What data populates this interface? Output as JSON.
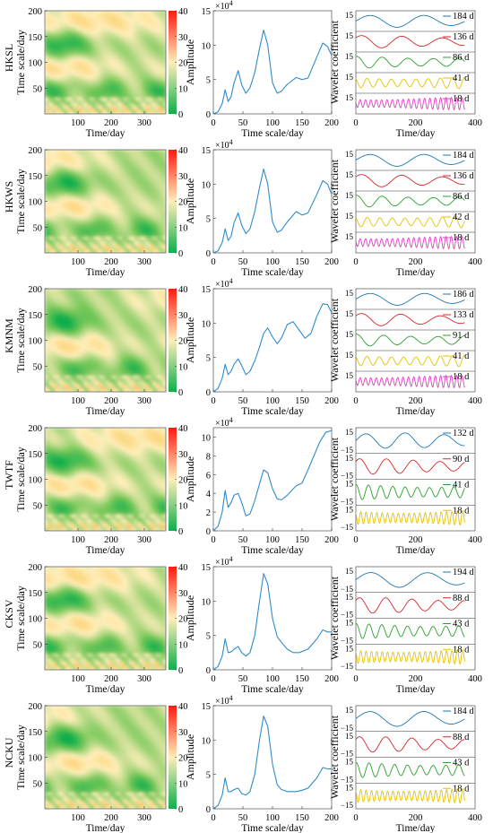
{
  "chart_data": {
    "type": "composite",
    "axis_labels": {
      "time": "Time/day",
      "scale": "Time scale/day",
      "amplitude": "Amplitude",
      "coefficient": "Wavelet coefficient",
      "exponent": "×10^4"
    },
    "colorbar": {
      "ticks": [
        0,
        10,
        20,
        30,
        40
      ],
      "colors": [
        "#0fae4c",
        "#ffeeba",
        "#ff1a10"
      ]
    },
    "wavelet_map": {
      "type": "heatmap",
      "x_ticks": [
        100,
        200,
        300
      ],
      "y_ticks": [
        50,
        100,
        150,
        200
      ],
      "xlim": [
        0,
        365
      ],
      "ylim": [
        0,
        200
      ]
    },
    "amplitude_xticks": [
      0,
      50,
      100,
      150,
      200
    ],
    "coef_xticks": [
      0,
      200,
      400
    ],
    "coef_tick": "15",
    "coef_tick_neg": "−15",
    "stations": [
      {
        "name": "HKSL",
        "amplitude": {
          "type": "line",
          "ylim": [
            0,
            15
          ],
          "yticks": [
            0,
            5,
            10,
            15
          ],
          "x": [
            0,
            8,
            15,
            20,
            25,
            30,
            35,
            42,
            48,
            55,
            62,
            70,
            78,
            85,
            92,
            100,
            108,
            115,
            125,
            140,
            150,
            160,
            175,
            185,
            193,
            200
          ],
          "y": [
            0,
            0.3,
            1.5,
            3.5,
            1.8,
            2.5,
            4.5,
            6.3,
            4.2,
            3.0,
            3.8,
            6.0,
            9.5,
            12.2,
            10.0,
            4.5,
            3.0,
            3.3,
            4.3,
            5.3,
            5.0,
            5.2,
            8.3,
            10.3,
            9.8,
            8.5
          ]
        },
        "periods": [
          {
            "label": "184 d",
            "period": 184,
            "color": "#1f77b4"
          },
          {
            "label": "136 d",
            "period": 136,
            "color": "#d62728"
          },
          {
            "label": "86 d",
            "period": 86,
            "color": "#2ca02c"
          },
          {
            "label": "41 d",
            "period": 41,
            "color": "#e6c200"
          },
          {
            "label": "18 d",
            "period": 18,
            "color": "#e040c0"
          }
        ]
      },
      {
        "name": "HKWS",
        "amplitude": {
          "type": "line",
          "ylim": [
            0,
            15
          ],
          "yticks": [
            0,
            5,
            10,
            15
          ],
          "x": [
            0,
            8,
            15,
            20,
            25,
            30,
            35,
            42,
            48,
            55,
            62,
            70,
            78,
            85,
            92,
            100,
            108,
            115,
            125,
            140,
            150,
            160,
            175,
            185,
            193,
            200
          ],
          "y": [
            0,
            0.3,
            1.5,
            3.5,
            1.8,
            2.4,
            4.4,
            5.8,
            4.0,
            2.8,
            3.5,
            6.0,
            9.5,
            12.2,
            10.0,
            4.5,
            3.0,
            3.3,
            4.5,
            6.0,
            5.5,
            5.8,
            8.5,
            10.5,
            10.0,
            8.5
          ]
        },
        "periods": [
          {
            "label": "184 d",
            "period": 184,
            "color": "#1f77b4"
          },
          {
            "label": "136 d",
            "period": 136,
            "color": "#d62728"
          },
          {
            "label": "86 d",
            "period": 86,
            "color": "#2ca02c"
          },
          {
            "label": "42 d",
            "period": 42,
            "color": "#e6c200"
          },
          {
            "label": "18 d",
            "period": 18,
            "color": "#e040c0"
          }
        ]
      },
      {
        "name": "KMNM",
        "amplitude": {
          "type": "line",
          "ylim": [
            0,
            15
          ],
          "yticks": [
            0,
            5,
            10,
            15
          ],
          "x": [
            0,
            8,
            15,
            20,
            25,
            30,
            35,
            42,
            48,
            55,
            62,
            70,
            78,
            85,
            92,
            100,
            108,
            115,
            125,
            135,
            145,
            155,
            165,
            175,
            185,
            193,
            200
          ],
          "y": [
            0,
            0.5,
            2.0,
            4.0,
            2.5,
            3.0,
            4.0,
            4.8,
            3.8,
            2.5,
            3.0,
            4.5,
            6.5,
            8.5,
            9.3,
            8.0,
            7.0,
            7.8,
            9.8,
            10.2,
            9.0,
            7.8,
            8.5,
            11.0,
            12.8,
            12.7,
            11.5
          ]
        },
        "periods": [
          {
            "label": "186 d",
            "period": 186,
            "color": "#1f77b4"
          },
          {
            "label": "133 d",
            "period": 133,
            "color": "#d62728"
          },
          {
            "label": "91 d",
            "period": 91,
            "color": "#2ca02c"
          },
          {
            "label": "41 d",
            "period": 41,
            "color": "#e6c200"
          },
          {
            "label": "18 d",
            "period": 18,
            "color": "#e040c0"
          }
        ]
      },
      {
        "name": "TWTF",
        "amplitude": {
          "type": "line",
          "ylim": [
            0,
            11
          ],
          "yticks": [
            0,
            2,
            4,
            6,
            8,
            10
          ],
          "x": [
            0,
            8,
            15,
            20,
            25,
            30,
            35,
            42,
            48,
            55,
            62,
            70,
            78,
            85,
            92,
            100,
            108,
            115,
            125,
            140,
            150,
            160,
            170,
            180,
            190,
            200
          ],
          "y": [
            0,
            0.5,
            2.0,
            4.3,
            2.5,
            3.0,
            3.8,
            4.0,
            3.0,
            1.6,
            1.8,
            3.2,
            5.0,
            6.5,
            6.2,
            4.5,
            3.4,
            3.3,
            3.8,
            4.8,
            5.1,
            6.5,
            8.0,
            9.5,
            10.5,
            10.7
          ]
        },
        "periods": [
          {
            "label": "132 d",
            "period": 132,
            "color": "#1f77b4"
          },
          {
            "label": "90 d",
            "period": 90,
            "color": "#d62728"
          },
          {
            "label": "41 d",
            "period": 41,
            "color": "#2ca02c"
          },
          {
            "label": "18 d",
            "period": 18,
            "color": "#e6c200"
          }
        ]
      },
      {
        "name": "CKSV",
        "amplitude": {
          "type": "line",
          "ylim": [
            0,
            15
          ],
          "yticks": [
            0,
            5,
            10,
            15
          ],
          "x": [
            0,
            8,
            15,
            20,
            25,
            30,
            35,
            42,
            48,
            55,
            62,
            70,
            78,
            85,
            92,
            100,
            108,
            115,
            125,
            135,
            145,
            160,
            175,
            185,
            193,
            200
          ],
          "y": [
            0,
            0.5,
            2.0,
            4.5,
            2.5,
            2.6,
            3.0,
            3.4,
            2.5,
            2.0,
            2.5,
            5.0,
            10.0,
            14.0,
            12.5,
            7.5,
            4.8,
            4.0,
            3.0,
            2.5,
            2.5,
            3.0,
            4.5,
            5.8,
            5.5,
            5.5
          ]
        },
        "periods": [
          {
            "label": "194 d",
            "period": 194,
            "color": "#1f77b4"
          },
          {
            "label": "88 d",
            "period": 88,
            "color": "#d62728"
          },
          {
            "label": "43 d",
            "period": 43,
            "color": "#2ca02c"
          },
          {
            "label": "18 d",
            "period": 18,
            "color": "#e6c200"
          }
        ]
      },
      {
        "name": "NCKU",
        "amplitude": {
          "type": "line",
          "ylim": [
            0,
            15
          ],
          "yticks": [
            0,
            5,
            10,
            15
          ],
          "x": [
            0,
            8,
            15,
            20,
            25,
            30,
            35,
            42,
            48,
            55,
            62,
            70,
            78,
            85,
            92,
            100,
            108,
            115,
            125,
            140,
            150,
            160,
            175,
            185,
            193,
            200
          ],
          "y": [
            0,
            0.5,
            2.0,
            4.5,
            2.5,
            2.5,
            2.8,
            3.0,
            2.2,
            2.0,
            2.5,
            5.0,
            10.0,
            13.5,
            12.0,
            6.5,
            3.5,
            2.8,
            2.5,
            2.5,
            2.7,
            3.0,
            4.5,
            6.0,
            5.8,
            5.8
          ]
        },
        "periods": [
          {
            "label": "184 d",
            "period": 184,
            "color": "#1f77b4"
          },
          {
            "label": "88 d",
            "period": 88,
            "color": "#d62728"
          },
          {
            "label": "43 d",
            "period": 43,
            "color": "#2ca02c"
          },
          {
            "label": "18 d",
            "period": 18,
            "color": "#e6c200"
          }
        ]
      }
    ]
  }
}
